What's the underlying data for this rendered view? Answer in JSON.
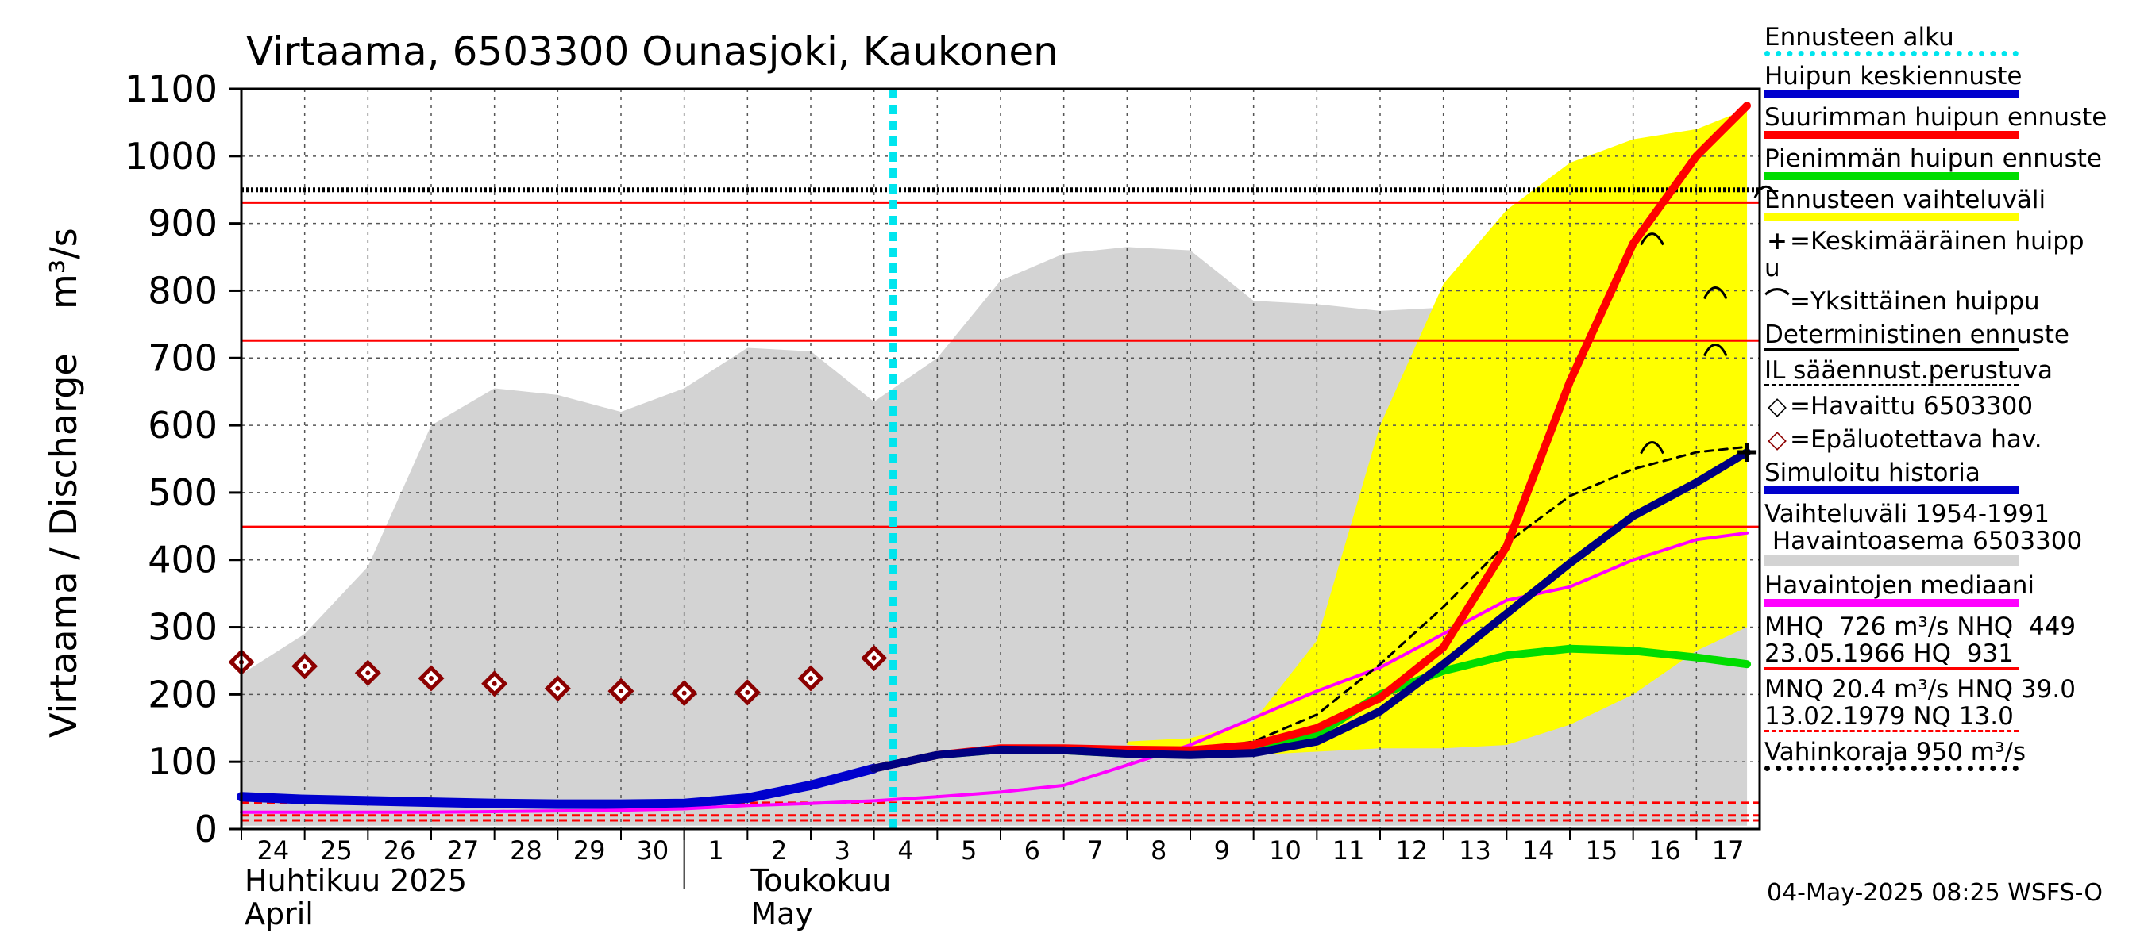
{
  "chart_data": {
    "type": "line",
    "title": "Virtaama, 6503300 Ounasjoki, Kaukonen",
    "ylabel": "Virtaama / Discharge",
    "yunit": "m³/s",
    "ylim": [
      0,
      1100
    ],
    "yticks": [
      0,
      100,
      200,
      300,
      400,
      500,
      600,
      700,
      800,
      900,
      1000,
      1100
    ],
    "x_days": [
      "24",
      "25",
      "26",
      "27",
      "28",
      "29",
      "30",
      "1",
      "2",
      "3",
      "4",
      "5",
      "6",
      "7",
      "8",
      "9",
      "10",
      "11",
      "12",
      "13",
      "14",
      "15",
      "16",
      "17"
    ],
    "month_labels": [
      {
        "fi": "Huhtikuu  2025",
        "en": "April"
      },
      {
        "fi": "Toukokuu",
        "en": "May"
      }
    ],
    "grid": true,
    "legend_placement": "right",
    "forecast_start": "4",
    "thresholds": [
      {
        "name": "MHQ",
        "value": 726,
        "color": "#ff0000",
        "style": "solid"
      },
      {
        "name": "NHQ",
        "value": 449,
        "color": "#ff0000",
        "style": "solid"
      },
      {
        "name": "HQ",
        "value": 931,
        "color": "#ff0000",
        "style": "solid"
      },
      {
        "name": "Vahinkoraja",
        "value": 950,
        "color": "#000000",
        "style": "dotted"
      },
      {
        "name": "MNQ",
        "value": 20.4,
        "color": "#ff0000",
        "style": "dashed"
      },
      {
        "name": "HNQ",
        "value": 39.0,
        "color": "#ff0000",
        "style": "dashed"
      },
      {
        "name": "NQ",
        "value": 13.0,
        "color": "#ff0000",
        "style": "dashed"
      }
    ],
    "range_1954_1991": {
      "x": [
        "24",
        "25",
        "26",
        "27",
        "28",
        "29",
        "30",
        "1",
        "2",
        "3",
        "4",
        "5",
        "6",
        "7",
        "8",
        "9",
        "10",
        "11",
        "12",
        "13",
        "14",
        "15",
        "16",
        "17",
        "17"
      ],
      "x_pos": [
        0,
        1,
        2,
        3,
        4,
        5,
        6,
        7,
        8,
        9,
        10,
        11,
        12,
        13,
        14,
        15,
        16,
        17,
        18,
        19,
        20,
        21,
        22,
        23,
        23.8
      ],
      "upper": [
        230,
        290,
        390,
        600,
        655,
        645,
        620,
        655,
        715,
        710,
        635,
        700,
        815,
        855,
        865,
        860,
        785,
        780,
        770,
        775,
        840,
        865,
        835,
        840,
        840
      ],
      "lower": [
        5,
        5,
        5,
        5,
        5,
        5,
        5,
        5,
        5,
        5,
        5,
        5,
        5,
        5,
        5,
        5,
        5,
        5,
        5,
        5,
        5,
        5,
        5,
        5,
        5
      ],
      "color": "#d3d3d3"
    },
    "forecast_range": {
      "x_pos": [
        14,
        15,
        16,
        17,
        18,
        19,
        20,
        21,
        22,
        23,
        23.8
      ],
      "upper": [
        130,
        135,
        160,
        280,
        600,
        810,
        920,
        990,
        1025,
        1040,
        1070
      ],
      "lower": [
        125,
        120,
        110,
        115,
        120,
        120,
        125,
        155,
        200,
        265,
        300
      ],
      "color": "#ffff00"
    },
    "series": [
      {
        "name": "Havaittu 6503300",
        "marker": "diamond",
        "color": "#8b0000",
        "x_pos": [
          0,
          1,
          2,
          3,
          4,
          5,
          6,
          7,
          8,
          9,
          10
        ],
        "values": [
          248,
          242,
          232,
          224,
          216,
          209,
          205,
          202,
          203,
          224,
          254
        ]
      },
      {
        "name": "Simuloitu historia",
        "color": "#0000cd",
        "x_pos": [
          0,
          1,
          2,
          3,
          4,
          5,
          6,
          7,
          8,
          9,
          10
        ],
        "values": [
          48,
          44,
          42,
          40,
          38,
          37,
          37,
          38,
          46,
          65,
          90
        ]
      },
      {
        "name": "Huipun keskiennuste",
        "color": "#000080",
        "x_pos": [
          10,
          11,
          12,
          13,
          14,
          15,
          16,
          17,
          18,
          19,
          20,
          21,
          22,
          23,
          23.8
        ],
        "values": [
          90,
          110,
          118,
          117,
          112,
          110,
          113,
          130,
          175,
          245,
          320,
          395,
          465,
          515,
          560
        ]
      },
      {
        "name": "Suurimman huipun ennuste",
        "color": "#ff0000",
        "x_pos": [
          10,
          11,
          12,
          13,
          14,
          15,
          16,
          17,
          18,
          19,
          20,
          21,
          22,
          23,
          23.8
        ],
        "values": [
          90,
          110,
          120,
          120,
          118,
          117,
          125,
          150,
          195,
          270,
          420,
          665,
          870,
          1000,
          1075
        ]
      },
      {
        "name": "Pienimmän huipun ennuste",
        "color": "#00dd00",
        "x_pos": [
          10,
          11,
          12,
          13,
          14,
          15,
          16,
          17,
          18,
          19,
          20,
          21,
          22,
          23,
          23.8
        ],
        "values": [
          90,
          110,
          118,
          117,
          112,
          112,
          118,
          140,
          200,
          235,
          258,
          268,
          265,
          255,
          245
        ]
      },
      {
        "name": "IL sääennust.perustuva",
        "color": "#000000",
        "style": "dashed",
        "x_pos": [
          10,
          11,
          12,
          13,
          14,
          15,
          16,
          17,
          18,
          19,
          20,
          21,
          22,
          23,
          23.8
        ],
        "values": [
          90,
          110,
          118,
          117,
          113,
          115,
          130,
          170,
          245,
          330,
          425,
          495,
          535,
          560,
          568
        ]
      },
      {
        "name": "Havaintojen mediaani",
        "color": "#ff00ff",
        "x_pos": [
          0,
          1,
          2,
          3,
          4,
          5,
          6,
          7,
          8,
          9,
          10,
          11,
          12,
          13,
          14,
          15,
          16,
          17,
          18,
          19,
          20,
          21,
          22,
          23,
          23.8
        ],
        "values": [
          25,
          25,
          25,
          25,
          26,
          27,
          28,
          30,
          35,
          38,
          42,
          48,
          55,
          65,
          95,
          125,
          165,
          205,
          240,
          290,
          340,
          360,
          400,
          430,
          440
        ]
      }
    ],
    "mean_peak": {
      "x_pos": 23.8,
      "value": 560
    },
    "single_peaks": [
      {
        "x_pos": 22.3,
        "value": 880
      },
      {
        "x_pos": 23.3,
        "value": 800
      },
      {
        "x_pos": 23.3,
        "value": 715
      },
      {
        "x_pos": 22.3,
        "value": 570
      },
      {
        "x_pos": 24.1,
        "value": 950
      }
    ]
  },
  "legend": {
    "items": [
      {
        "label": "Ennusteen alku",
        "color": "#00e5ee",
        "style": "dotted"
      },
      {
        "label": "Huipun keskiennuste",
        "color": "#0000cd",
        "style": "solid"
      },
      {
        "label": "Suurimman huipun ennuste",
        "color": "#ff0000",
        "style": "solid"
      },
      {
        "label": "Pienimmän huipun ennuste",
        "color": "#00dd00",
        "style": "solid"
      },
      {
        "label": "Ennusteen vaihteluväli",
        "color": "#ffff00",
        "style": "solid"
      },
      {
        "label": "=Keskimääräinen huipp\nu",
        "marker": "+"
      },
      {
        "label": "=Yksittäinen huippu",
        "marker": "⌒"
      },
      {
        "label": "Deterministinen ennuste",
        "color": "#000000",
        "style": "thin"
      },
      {
        "label": "IL sääennust.perustuva",
        "color": "#000000",
        "style": "dashed"
      },
      {
        "label": "=Havaittu 6503300",
        "marker": "◇",
        "marker_color": "#000000"
      },
      {
        "label": "=Epäluotettava hav.",
        "marker": "◇",
        "marker_color": "#8b0000"
      },
      {
        "label": "Simuloitu historia",
        "color": "#0000cd",
        "style": "solid"
      },
      {
        "label": "Vaihteluväli 1954-1991\n Havaintoasema 6503300",
        "color": "#d3d3d3",
        "style": "solid"
      },
      {
        "label": "Havaintojen mediaani",
        "color": "#ff00ff",
        "style": "solid"
      },
      {
        "label": "MHQ  726 m³/s NHQ  449\n23.05.1966 HQ  931",
        "color": "#ff0000",
        "style": "thin"
      },
      {
        "label": "MNQ 20.4 m³/s HNQ 39.0\n13.02.1979 NQ 13.0",
        "color": "#ff0000",
        "style": "dashed"
      },
      {
        "label": "Vahinkoraja 950 m³/s",
        "color": "#000000",
        "style": "dotted"
      }
    ]
  },
  "footer": "04-May-2025 08:25 WSFS-O"
}
